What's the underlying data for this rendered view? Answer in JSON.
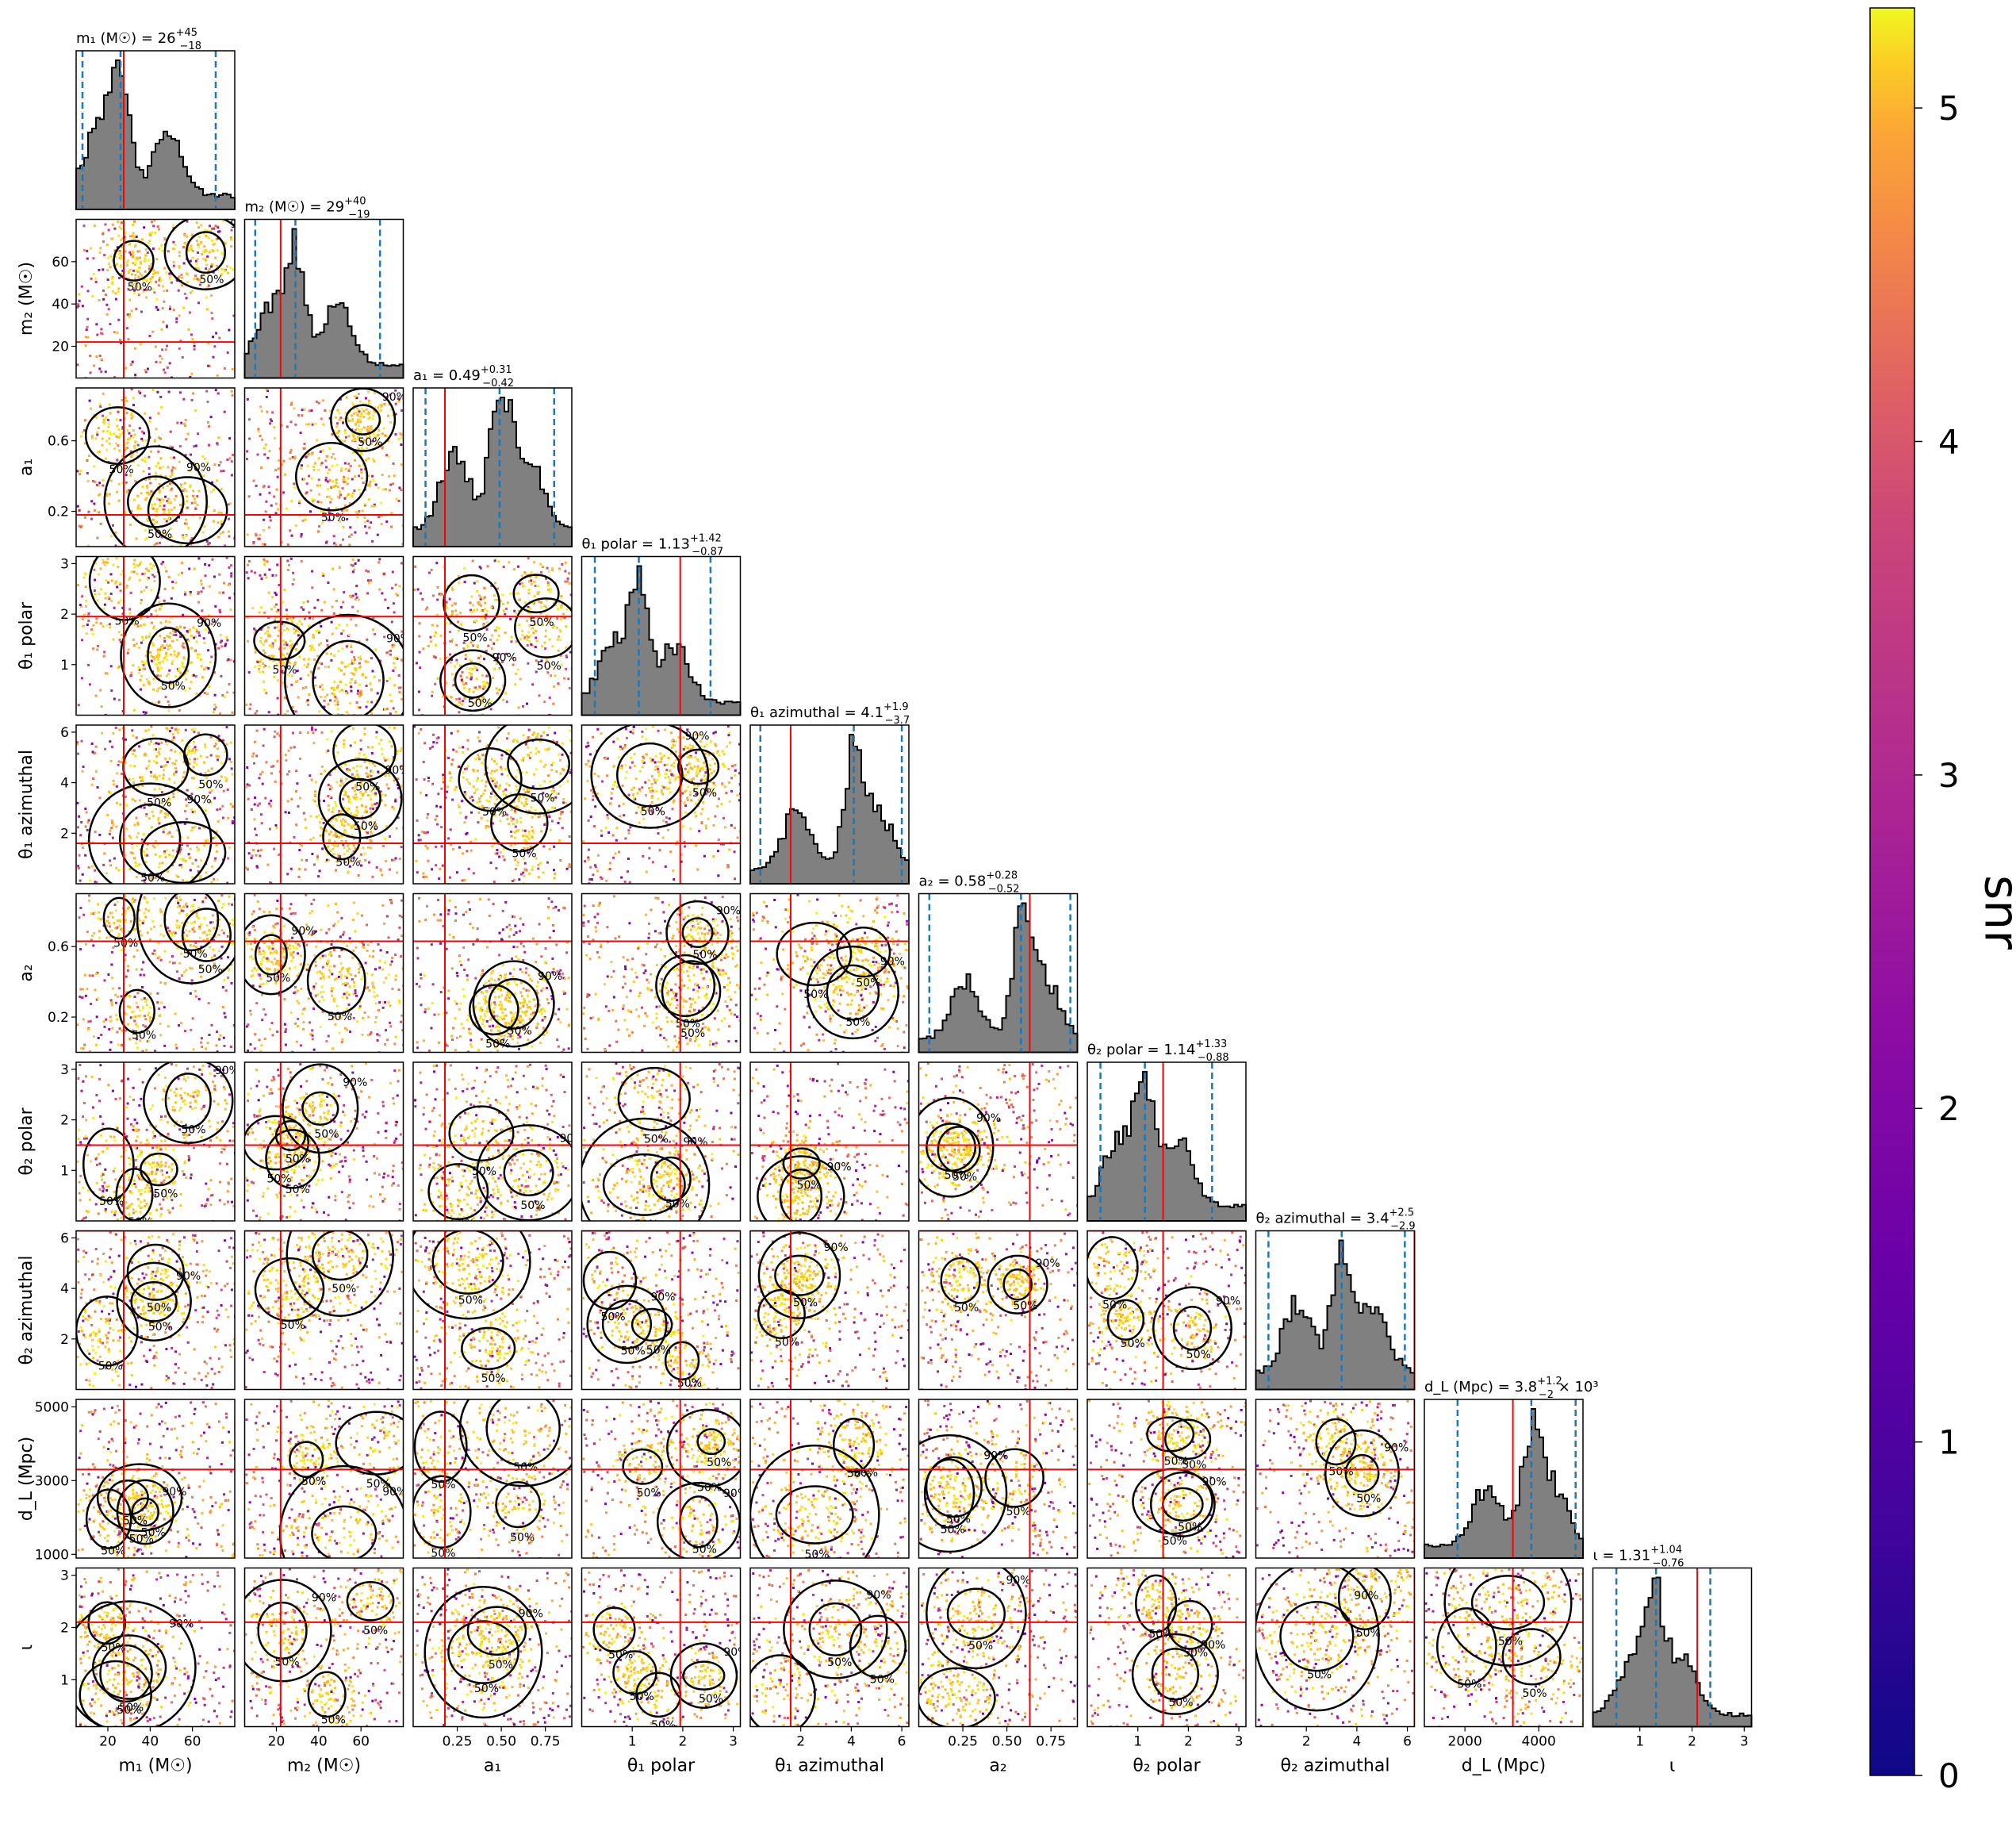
{
  "chart_data": {
    "type": "corner",
    "colorbar": {
      "label": "snr",
      "range": [
        0,
        5.3
      ],
      "ticks": [
        0,
        1,
        2,
        3,
        4,
        5
      ],
      "colormap": "plasma"
    },
    "contour_levels": [
      "50%",
      "90%"
    ],
    "colors": {
      "histogram_fill": "#808080",
      "quantile_line": "#1f77b4",
      "truth_line": "#ff0000",
      "contour": "#000000"
    },
    "parameters": [
      {
        "key": "m1",
        "label": "m₁ (M☉)",
        "range": [
          5,
          80
        ],
        "ticks": [
          20,
          40,
          60
        ],
        "tick_labels": [
          "20",
          "40",
          "60"
        ],
        "title_base": "m₁ (M☉) = 26",
        "title_plus": "+45",
        "title_minus": "−18",
        "title_suffix": "",
        "median": 26,
        "q_low": 8,
        "q_high": 71,
        "truth": 27.5
      },
      {
        "key": "m2",
        "label": "m₂ (M☉)",
        "range": [
          5,
          80
        ],
        "ticks": [
          20,
          40,
          60
        ],
        "tick_labels": [
          "20",
          "40",
          "60"
        ],
        "title_base": "m₂ (M☉) = 29",
        "title_plus": "+40",
        "title_minus": "−19",
        "title_suffix": "",
        "median": 29,
        "q_low": 10,
        "q_high": 69,
        "truth": 22
      },
      {
        "key": "a1",
        "label": "a₁",
        "range": [
          0.0,
          0.9
        ],
        "ticks": [
          0.2,
          0.6
        ],
        "tick_labels": [
          "0.2",
          "0.6"
        ],
        "x_ticks": [
          0.25,
          0.5,
          0.75
        ],
        "x_tick_labels": [
          "0.25",
          "0.50",
          "0.75"
        ],
        "title_base": "a₁ = 0.49",
        "title_plus": "+0.31",
        "title_minus": "−0.42",
        "title_suffix": "",
        "median": 0.49,
        "q_low": 0.07,
        "q_high": 0.8,
        "truth": 0.18
      },
      {
        "key": "theta1_polar",
        "label": "θ₁ polar",
        "range": [
          0,
          3.14
        ],
        "ticks": [
          1,
          2,
          3
        ],
        "tick_labels": [
          "1",
          "2",
          "3"
        ],
        "title_base": "θ₁ polar = 1.13",
        "title_plus": "+1.42",
        "title_minus": "−0.87",
        "title_suffix": "",
        "median": 1.13,
        "q_low": 0.26,
        "q_high": 2.55,
        "truth": 1.95
      },
      {
        "key": "theta1_azimuthal",
        "label": "θ₁ azimuthal",
        "range": [
          0,
          6.28
        ],
        "ticks": [
          2,
          4,
          6
        ],
        "tick_labels": [
          "2",
          "4",
          "6"
        ],
        "title_base": "θ₁ azimuthal = 4.1",
        "title_plus": "+1.9",
        "title_minus": "−3.7",
        "title_suffix": "",
        "median": 4.1,
        "q_low": 0.4,
        "q_high": 6.0,
        "truth": 1.6
      },
      {
        "key": "a2",
        "label": "a₂",
        "range": [
          0.0,
          0.9
        ],
        "ticks": [
          0.2,
          0.6
        ],
        "tick_labels": [
          "0.2",
          "0.6"
        ],
        "x_ticks": [
          0.25,
          0.5,
          0.75
        ],
        "x_tick_labels": [
          "0.25",
          "0.50",
          "0.75"
        ],
        "title_base": "a₂ = 0.58",
        "title_plus": "+0.28",
        "title_minus": "−0.52",
        "title_suffix": "",
        "median": 0.58,
        "q_low": 0.06,
        "q_high": 0.86,
        "truth": 0.63
      },
      {
        "key": "theta2_polar",
        "label": "θ₂ polar",
        "range": [
          0,
          3.14
        ],
        "ticks": [
          1,
          2,
          3
        ],
        "tick_labels": [
          "1",
          "2",
          "3"
        ],
        "title_base": "θ₂ polar = 1.14",
        "title_plus": "+1.33",
        "title_minus": "−0.88",
        "title_suffix": "",
        "median": 1.14,
        "q_low": 0.26,
        "q_high": 2.47,
        "truth": 1.5
      },
      {
        "key": "theta2_azimuthal",
        "label": "θ₂ azimuthal",
        "range": [
          0,
          6.28
        ],
        "ticks": [
          2,
          4,
          6
        ],
        "tick_labels": [
          "2",
          "4",
          "6"
        ],
        "title_base": "θ₂ azimuthal = 3.4",
        "title_plus": "+2.5",
        "title_minus": "−2.9",
        "title_suffix": "",
        "median": 3.4,
        "q_low": 0.5,
        "q_high": 5.9,
        "truth": 6.28
      },
      {
        "key": "dL",
        "label": "d_L (Mpc)",
        "range": [
          900,
          5200
        ],
        "ticks": [
          1000,
          3000,
          5000
        ],
        "tick_labels": [
          "1000",
          "3000",
          "5000"
        ],
        "x_ticks": [
          2000,
          4000
        ],
        "x_tick_labels": [
          "2000",
          "4000"
        ],
        "title_base": "d_L (Mpc) = 3.8",
        "title_plus": "+1.2",
        "title_minus": "−2",
        "title_suffix": " × 10³",
        "median": 3800,
        "q_low": 1800,
        "q_high": 5000,
        "truth": 3300
      },
      {
        "key": "iota",
        "label": "ι",
        "range": [
          0.1,
          3.14
        ],
        "ticks": [
          1,
          2,
          3
        ],
        "tick_labels": [
          "1",
          "2",
          "3"
        ],
        "title_base": "ι = 1.31",
        "title_plus": "+1.04",
        "title_minus": "−0.76",
        "title_suffix": "",
        "median": 1.31,
        "q_low": 0.55,
        "q_high": 2.35,
        "truth": 2.1
      }
    ]
  }
}
